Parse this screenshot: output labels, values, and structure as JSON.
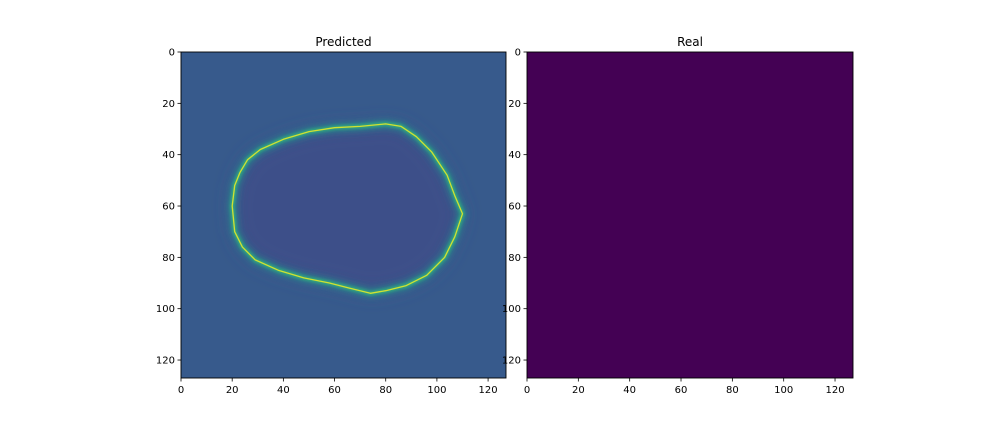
{
  "chart_data": [
    {
      "type": "heatmap",
      "title": "Predicted",
      "xlabel": "",
      "ylabel": "",
      "xlim": [
        0,
        127
      ],
      "ylim": [
        127,
        0
      ],
      "x_ticks": [
        0,
        20,
        40,
        60,
        80,
        100,
        120
      ],
      "y_ticks": [
        0,
        20,
        40,
        60,
        80,
        100,
        120
      ],
      "x_tick_labels": [
        "0",
        "20",
        "40",
        "60",
        "80",
        "100",
        "120"
      ],
      "y_tick_labels": [
        "0",
        "20",
        "40",
        "60",
        "80",
        "100",
        "120"
      ],
      "colormap": "viridis",
      "background_value": 0.35,
      "inner_region_value": 0.3,
      "contour_peak_value": 0.95,
      "contour_points": [
        [
          20,
          60
        ],
        [
          21,
          52
        ],
        [
          23,
          47
        ],
        [
          26,
          42
        ],
        [
          31,
          38
        ],
        [
          40,
          34
        ],
        [
          50,
          31
        ],
        [
          60,
          29.5
        ],
        [
          70,
          29
        ],
        [
          80,
          28
        ],
        [
          86,
          29
        ],
        [
          92,
          33
        ],
        [
          98,
          39
        ],
        [
          104,
          48
        ],
        [
          107,
          56
        ],
        [
          110,
          63
        ],
        [
          107,
          72
        ],
        [
          103,
          80
        ],
        [
          96,
          87
        ],
        [
          88,
          91
        ],
        [
          80,
          93
        ],
        [
          74,
          94
        ],
        [
          66,
          92
        ],
        [
          58,
          90
        ],
        [
          48,
          88
        ],
        [
          38,
          85
        ],
        [
          29,
          81
        ],
        [
          24,
          76
        ],
        [
          21,
          70
        ]
      ]
    },
    {
      "type": "heatmap",
      "title": "Real",
      "xlabel": "",
      "ylabel": "",
      "xlim": [
        0,
        127
      ],
      "ylim": [
        127,
        0
      ],
      "x_ticks": [
        0,
        20,
        40,
        60,
        80,
        100,
        120
      ],
      "y_ticks": [
        0,
        20,
        40,
        60,
        80,
        100,
        120
      ],
      "x_tick_labels": [
        "0",
        "20",
        "40",
        "60",
        "80",
        "100",
        "120"
      ],
      "y_tick_labels": [
        "0",
        "20",
        "40",
        "60",
        "80",
        "100",
        "120"
      ],
      "colormap": "viridis",
      "background_value": 0,
      "fill_color": "#440154"
    }
  ]
}
